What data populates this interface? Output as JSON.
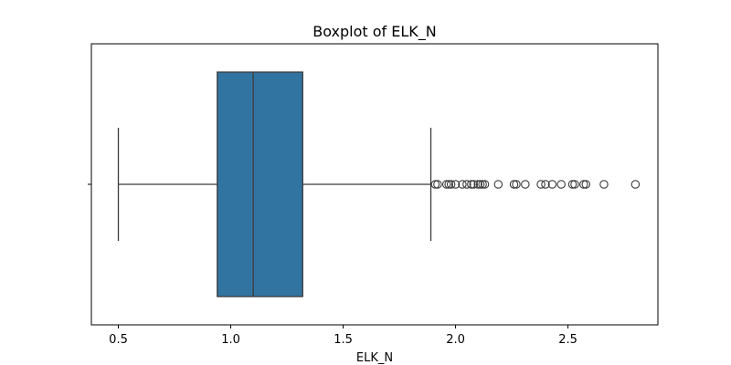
{
  "chart_data": {
    "type": "boxplot",
    "title": "Boxplot of ELK_N",
    "xlabel": "ELK_N",
    "ylabel": "",
    "xlim": [
      0.38,
      2.9
    ],
    "x_ticks": [
      0.5,
      1.0,
      1.5,
      2.0,
      2.5
    ],
    "x_tick_labels": [
      "0.5",
      "1.0",
      "1.5",
      "2.0",
      "2.5"
    ],
    "grid": false,
    "box_color": "#3274a1",
    "line_color": "#3b3b3b",
    "stats": {
      "whisker_low": 0.5,
      "q1": 0.94,
      "median": 1.1,
      "q3": 1.32,
      "whisker_high": 1.89
    },
    "outliers": [
      1.91,
      1.92,
      1.96,
      1.97,
      1.98,
      2.0,
      2.03,
      2.05,
      2.07,
      2.08,
      2.1,
      2.11,
      2.12,
      2.13,
      2.19,
      2.26,
      2.27,
      2.31,
      2.38,
      2.4,
      2.43,
      2.47,
      2.52,
      2.53,
      2.57,
      2.58,
      2.66,
      2.8
    ]
  }
}
